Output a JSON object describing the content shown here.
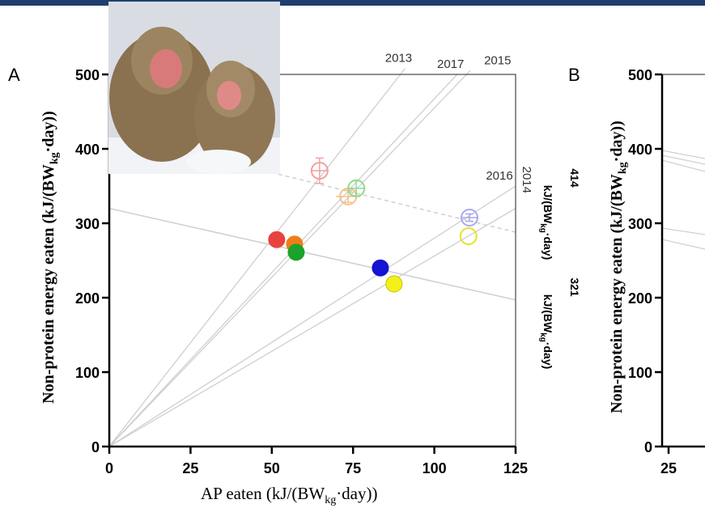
{
  "chart_data": [
    {
      "type": "scatter",
      "panel": "A",
      "xlabel": {
        "pre": "AP eaten (kJ/(BW",
        "sub": "kg",
        "post": "·day))"
      },
      "ylabel": {
        "pre": "Non-protein energy eaten (kJ/(BW",
        "sub": "kg",
        "post": "·day))"
      },
      "xlim": [
        0,
        125
      ],
      "xticks": [
        0,
        25,
        50,
        75,
        100,
        125
      ],
      "ylim": [
        0,
        500
      ],
      "yticks": [
        0,
        100,
        200,
        300,
        400,
        500
      ],
      "series": [
        {
          "filled": true,
          "colors": [
            "#e8423f",
            "#f07d1a",
            "#1aa32a",
            "#1414d2",
            "#f2f21a"
          ],
          "x": [
            51.5,
            57,
            57.5,
            83.4,
            87.6
          ],
          "values": [
            278,
            272,
            261,
            240,
            218.5
          ]
        },
        {
          "filled": false,
          "colors": [
            "#f4a0a0",
            "#f7c08a",
            "#8fdc8f",
            "#a8a8f0",
            "#e8e030"
          ],
          "x": [
            64.7,
            73.5,
            76,
            110.8,
            110.5
          ],
          "values": [
            370.6,
            336,
            347,
            307.6,
            282.6
          ],
          "yerr": [
            17,
            8,
            10,
            5,
            0
          ],
          "xerr": [
            2,
            3,
            2,
            2,
            0
          ]
        }
      ],
      "year_lines": [
        {
          "label": "2013",
          "x": [
            0,
            91
          ],
          "values": [
            0,
            508
          ]
        },
        {
          "label": "2017",
          "x": [
            0,
            107
          ],
          "values": [
            0,
            500
          ]
        },
        {
          "label": "2015",
          "x": [
            0,
            111
          ],
          "values": [
            0,
            505
          ]
        },
        {
          "label": "2016",
          "x": [
            0,
            125
          ],
          "values": [
            0,
            350
          ]
        },
        {
          "label": "2014",
          "x": [
            0,
            125
          ],
          "values": [
            0,
            320
          ]
        }
      ],
      "energy_lines": [
        {
          "dashed": false,
          "x": [
            0,
            125
          ],
          "values": [
            320,
            197
          ],
          "label": "321",
          "unit": {
            "pre": "kJ/(BW",
            "sub": "kg",
            "post": "·day)"
          }
        },
        {
          "dashed": true,
          "x": [
            52,
            125
          ],
          "values": [
            366,
            288
          ],
          "label": "414",
          "unit": {
            "pre": "kJ/(BW",
            "sub": "kg",
            "post": "·day)"
          }
        }
      ]
    },
    {
      "type": "scatter",
      "panel": "B",
      "ylabel": {
        "pre": "Non-protein energy eaten (kJ/(BW",
        "sub": "kg",
        "post": "·day))"
      },
      "ylim": [
        0,
        500
      ],
      "yticks": [
        0,
        100,
        200,
        300,
        400,
        500
      ],
      "xticks": [
        25
      ]
    }
  ]
}
